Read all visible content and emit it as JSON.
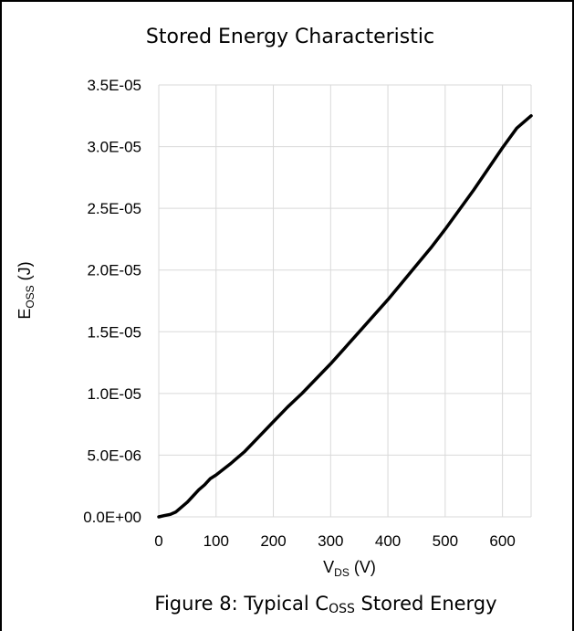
{
  "chart_data": {
    "type": "line",
    "title": "Stored Energy Characteristic",
    "xlabel": {
      "main": "V",
      "sub": "DS",
      "rest": " (V)"
    },
    "ylabel": {
      "main": "E",
      "sub": "OSS",
      "rest": " (J)"
    },
    "xlim": [
      0,
      650
    ],
    "ylim": [
      0,
      3.5e-05
    ],
    "x_ticks": [
      0,
      100,
      200,
      300,
      400,
      500,
      600
    ],
    "x_tick_labels": [
      "0",
      "100",
      "200",
      "300",
      "400",
      "500",
      "600"
    ],
    "y_ticks": [
      0,
      5e-06,
      1e-05,
      1.5e-05,
      2e-05,
      2.5e-05,
      3e-05,
      3.5e-05
    ],
    "y_tick_labels": [
      "0.0E+00",
      "5.0E-06",
      "1.0E-05",
      "1.5E-05",
      "2.0E-05",
      "2.5E-05",
      "3.0E-05",
      "3.5E-05"
    ],
    "grid": true,
    "series": [
      {
        "color": "#000000",
        "x": [
          0,
          10,
          20,
          30,
          40,
          50,
          60,
          70,
          80,
          90,
          100,
          125,
          150,
          175,
          200,
          225,
          250,
          275,
          300,
          325,
          350,
          375,
          400,
          425,
          450,
          475,
          500,
          525,
          550,
          575,
          600,
          625,
          650
        ],
        "y": [
          0,
          1e-07,
          2e-07,
          4e-07,
          8e-07,
          1.2e-06,
          1.7e-06,
          2.2e-06,
          2.6e-06,
          3.1e-06,
          3.4e-06,
          4.3e-06,
          5.3e-06,
          6.5e-06,
          7.7e-06,
          8.9e-06,
          1e-05,
          1.12e-05,
          1.24e-05,
          1.37e-05,
          1.5e-05,
          1.63e-05,
          1.76e-05,
          1.9e-05,
          2.04e-05,
          2.18e-05,
          2.33e-05,
          2.49e-05,
          2.65e-05,
          2.82e-05,
          2.99e-05,
          3.15e-05,
          3.25e-05
        ]
      }
    ]
  },
  "caption": {
    "prefix": "Figure 8: Typical C",
    "sub": "OSS",
    "suffix": " Stored Energy"
  }
}
